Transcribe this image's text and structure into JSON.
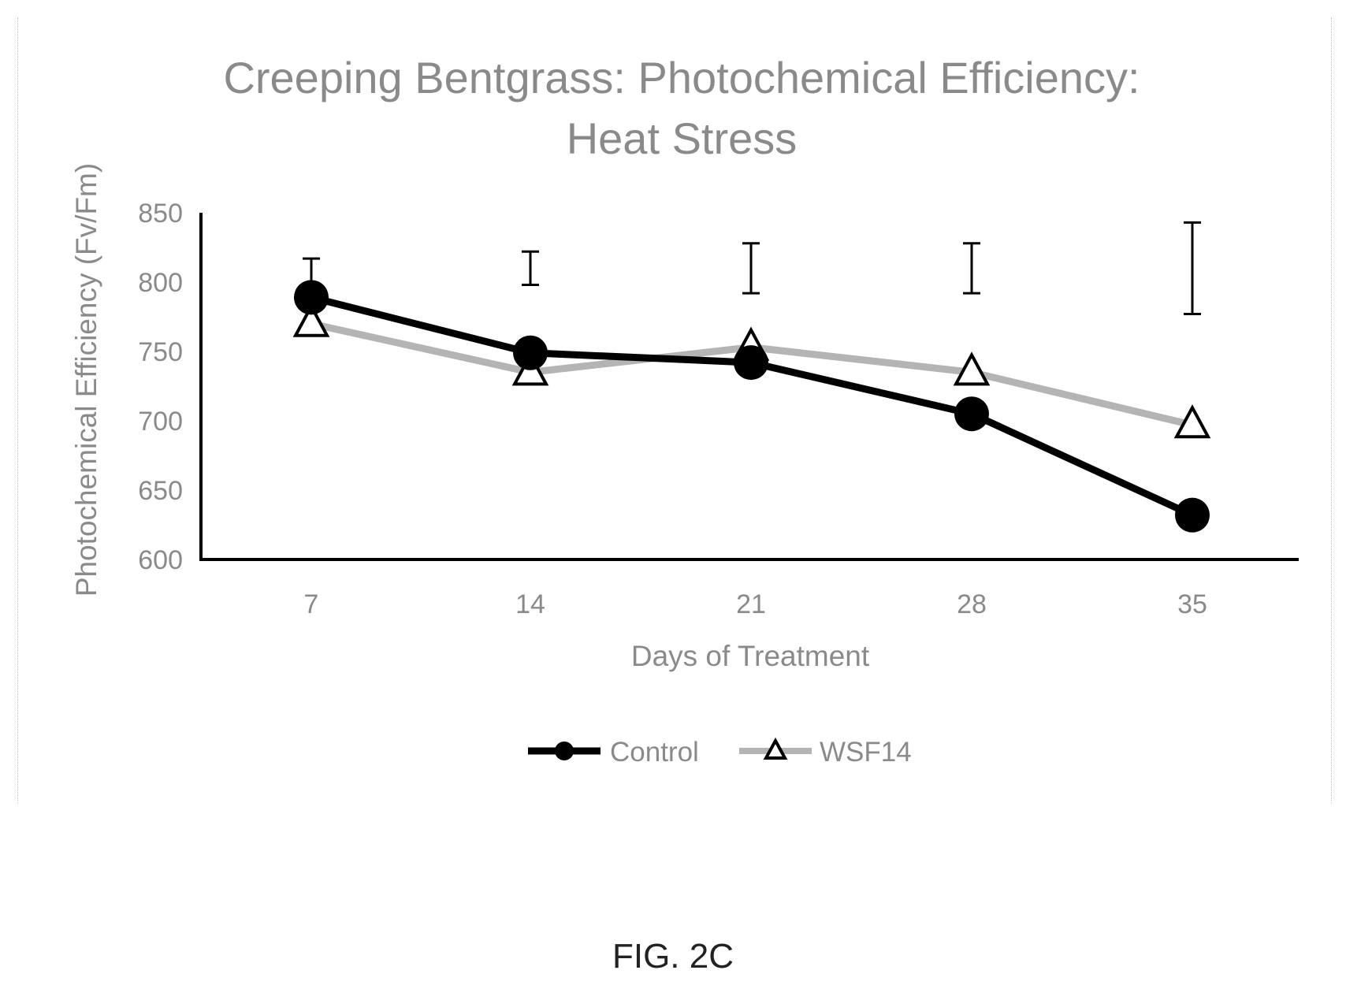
{
  "chart_data": {
    "type": "line",
    "title_lines": [
      "Creeping Bentgrass: Photochemical Efficiency:",
      "Heat Stress"
    ],
    "xlabel": "Days of Treatment",
    "ylabel": "Photochemical Efficiency (Fv/Fm)",
    "categories": [
      "7",
      "14",
      "21",
      "28",
      "35"
    ],
    "ylim": [
      600,
      850
    ],
    "yticks": [
      600,
      650,
      700,
      750,
      800,
      850
    ],
    "series": [
      {
        "name": "Control",
        "values": [
          789,
          749,
          742,
          705,
          632
        ],
        "marker": "circle",
        "color": "#000000"
      },
      {
        "name": "WSF14",
        "values": [
          770,
          735,
          753,
          735,
          697
        ],
        "marker": "triangle",
        "color": "#b4b4b4"
      }
    ],
    "error_bars": [
      {
        "low": 768,
        "high": 817
      },
      {
        "low": 798,
        "high": 822
      },
      {
        "low": 792,
        "high": 828
      },
      {
        "low": 792,
        "high": 828
      },
      {
        "low": 777,
        "high": 843
      }
    ],
    "grid": false,
    "legend_position": "bottom"
  },
  "caption": "FIG. 2C"
}
